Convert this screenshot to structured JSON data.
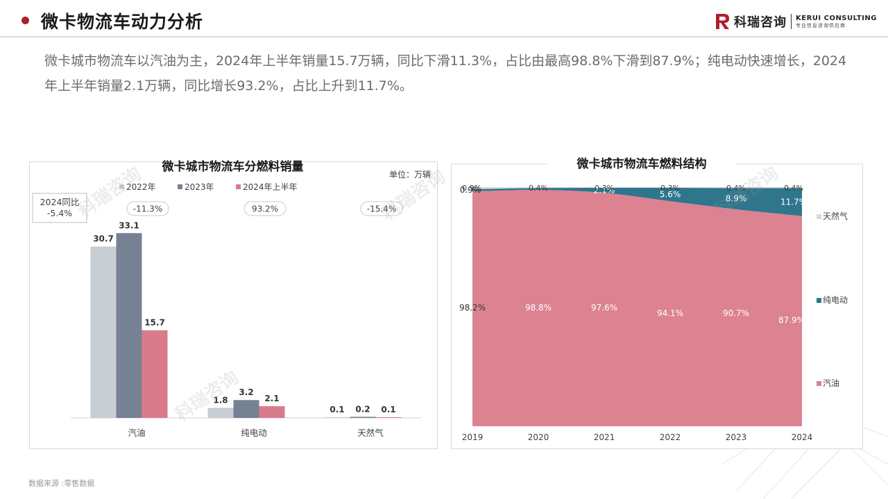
{
  "header": {
    "title": "微卡物流车动力分析",
    "logo_cn": "科瑞咨询",
    "logo_en": "KERUI CONSULTING",
    "logo_sub": "专业信息咨询供应商",
    "brand_color": "#b01e2c"
  },
  "intro_text": "微卡城市物流车以汽油为主，2024年上半年销量15.7万辆，同比下滑11.3%，占比由最高98.8%下滑到87.9%；纯电动快速增长，2024年上半年销量2.1万辆，同比增长93.2%，占比上升到11.7%。",
  "source_text": "数据来源 :零售数据",
  "chart_data": [
    {
      "type": "bar",
      "title": "微卡城市物流车分燃料销量",
      "unit_label": "单位：万辆",
      "categories": [
        "汽油",
        "纯电动",
        "天然气"
      ],
      "series": [
        {
          "name": "2022年",
          "values": [
            30.7,
            1.8,
            0.1
          ],
          "color": "#c9cdd4"
        },
        {
          "name": "2023年",
          "values": [
            33.1,
            3.2,
            0.2
          ],
          "color": "#768294"
        },
        {
          "name": "2024年上半年",
          "values": [
            15.7,
            2.1,
            0.1
          ],
          "color": "#da7b8b"
        }
      ],
      "yoy_box_label": "2024同比\n-5.4%",
      "yoy_labels": [
        "-11.3%",
        "93.2%",
        "-15.4%"
      ],
      "ylim": [
        0,
        36
      ],
      "legend_position": "top"
    },
    {
      "type": "area",
      "title": "微卡城市物流车燃料结构",
      "x": [
        "2019",
        "2020",
        "2021",
        "2022",
        "2023",
        "2024"
      ],
      "series": [
        {
          "name": "汽油",
          "values": [
            98.2,
            98.8,
            97.6,
            94.1,
            90.7,
            87.9
          ],
          "labels": [
            "98.2%",
            "98.8%",
            "97.6%",
            "94.1%",
            "90.7%",
            "87.9%"
          ],
          "color": "#dc8291"
        },
        {
          "name": "纯电动",
          "values": [
            0.9,
            0.8,
            2.1,
            5.6,
            8.9,
            11.7
          ],
          "labels": [
            "0.9%",
            "",
            "2.1%",
            "5.6%",
            "8.9%",
            "11.7%"
          ],
          "color": "#2f768c"
        },
        {
          "name": "天然气",
          "values": [
            0.9,
            0.4,
            0.3,
            0.3,
            0.4,
            0.4
          ],
          "labels": [
            "0.9%",
            "0.4%",
            "0.3%",
            "0.3%",
            "0.4%",
            "0.4%"
          ],
          "color": "#d9d9d9"
        }
      ],
      "ylim": [
        0,
        100
      ],
      "legend_position": "right"
    }
  ]
}
